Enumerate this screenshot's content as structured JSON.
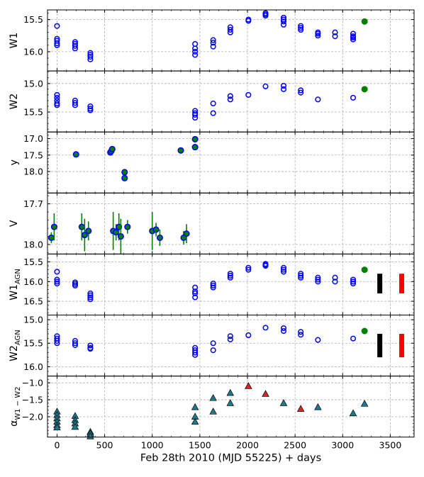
{
  "chart_data": {
    "type": "scatter",
    "xlabel": "Feb 28th 2010 (MJD 55225) + days",
    "xlim": [
      -100,
      3750
    ],
    "xticks": [
      0,
      500,
      1000,
      1500,
      2000,
      2500,
      3000,
      3500
    ],
    "grid": true,
    "panels": [
      {
        "ylabel": "W1",
        "ylabel_sub": "",
        "ylim": [
          16.3,
          15.35
        ],
        "yticks": [
          15.5,
          16.0
        ],
        "series": [
          {
            "marker": "open-circle",
            "color": "#0000ff",
            "x": [
              0,
              0,
              0,
              0,
              0,
              190,
              190,
              190,
              190,
              350,
              350,
              350,
              350,
              1450,
              1450,
              1450,
              1450,
              1640,
              1640,
              1640,
              1820,
              1820,
              1820,
              2010,
              2010,
              2190,
              2190,
              2190,
              2380,
              2380,
              2380,
              2380,
              2560,
              2560,
              2560,
              2740,
              2740,
              2740,
              2920,
              2920,
              3110,
              3110,
              3110,
              3110
            ],
            "y": [
              15.6,
              15.8,
              15.83,
              15.87,
              15.9,
              15.85,
              15.88,
              15.91,
              15.95,
              16.02,
              16.05,
              16.08,
              16.12,
              15.88,
              15.95,
              16.0,
              16.05,
              15.82,
              15.86,
              15.92,
              15.62,
              15.66,
              15.7,
              15.5,
              15.52,
              15.4,
              15.42,
              15.44,
              15.47,
              15.5,
              15.53,
              15.58,
              15.6,
              15.63,
              15.66,
              15.7,
              15.72,
              15.75,
              15.7,
              15.76,
              15.72,
              15.76,
              15.78,
              15.81
            ]
          },
          {
            "marker": "filled-circle",
            "color": "#008000",
            "x": [
              3230
            ],
            "y": [
              15.53
            ]
          }
        ]
      },
      {
        "ylabel": "W2",
        "ylabel_sub": "",
        "ylim": [
          15.85,
          14.78
        ],
        "yticks": [
          15.0,
          15.5
        ],
        "series": [
          {
            "marker": "open-circle",
            "color": "#0000ff",
            "x": [
              0,
              0,
              0,
              0,
              0,
              190,
              190,
              190,
              350,
              350,
              350,
              1450,
              1450,
              1450,
              1450,
              1640,
              1640,
              1820,
              1820,
              2010,
              2190,
              2380,
              2380,
              2560,
              2560,
              2740,
              3110
            ],
            "y": [
              15.2,
              15.25,
              15.3,
              15.35,
              15.38,
              15.3,
              15.34,
              15.38,
              15.4,
              15.44,
              15.47,
              15.48,
              15.52,
              15.55,
              15.6,
              15.35,
              15.52,
              15.22,
              15.28,
              15.2,
              15.05,
              15.04,
              15.1,
              15.12,
              15.16,
              15.28,
              15.25
            ]
          },
          {
            "marker": "filled-circle",
            "color": "#008000",
            "x": [
              3230
            ],
            "y": [
              15.1
            ]
          }
        ]
      },
      {
        "ylabel": "y",
        "ylabel_sub": "",
        "ylim": [
          18.65,
          16.8
        ],
        "yticks": [
          17.0,
          17.5,
          18.0
        ],
        "series": [
          {
            "marker": "filled-circle-blue-edge",
            "color": "#008000",
            "x": [
              200,
              560,
              570,
              580,
              710,
              710,
              1300,
              1450,
              1450
            ],
            "y": [
              17.48,
              17.42,
              17.38,
              17.32,
              18.02,
              18.2,
              17.36,
              17.02,
              17.26
            ]
          }
        ]
      },
      {
        "ylabel": "V",
        "ylabel_sub": "",
        "ylim": [
          18.07,
          17.62
        ],
        "yticks": [
          17.7,
          18.0
        ],
        "series": [
          {
            "marker": "filled-circle-blue-edge",
            "color": "#008000",
            "errorbar_color": "#008000",
            "x": [
              -60,
              -30,
              260,
              290,
              330,
              590,
              620,
              650,
              670,
              740,
              1000,
              1040,
              1080,
              1330,
              1360
            ],
            "y": [
              17.95,
              17.87,
              17.87,
              17.93,
              17.9,
              17.9,
              17.91,
              17.87,
              17.94,
              17.87,
              17.9,
              17.89,
              17.95,
              17.95,
              17.92
            ],
            "yerr": [
              0.04,
              0.1,
              0.1,
              0.12,
              0.07,
              0.14,
              0.06,
              0.1,
              0.13,
              0.05,
              0.14,
              0.05,
              0.06,
              0.05,
              0.07
            ]
          }
        ]
      },
      {
        "ylabel": "W1",
        "ylabel_sub": "AGN",
        "ylim": [
          16.85,
          15.3
        ],
        "yticks": [
          15.5,
          16.0,
          16.5
        ],
        "series": [
          {
            "marker": "open-circle",
            "color": "#0000ff",
            "x": [
              0,
              0,
              0,
              0,
              190,
              190,
              190,
              350,
              350,
              350,
              350,
              1450,
              1450,
              1450,
              1450,
              1640,
              1640,
              1640,
              1820,
              1820,
              1820,
              2010,
              2010,
              2190,
              2190,
              2190,
              2380,
              2380,
              2380,
              2560,
              2560,
              2560,
              2740,
              2740,
              2740,
              2920,
              2920,
              3110,
              3110,
              3110
            ],
            "y": [
              15.75,
              15.95,
              16.0,
              16.05,
              16.02,
              16.06,
              16.1,
              16.3,
              16.35,
              16.4,
              16.45,
              16.15,
              16.25,
              16.3,
              16.4,
              16.05,
              16.1,
              16.15,
              15.8,
              15.85,
              15.9,
              15.65,
              15.7,
              15.55,
              15.58,
              15.6,
              15.65,
              15.7,
              15.75,
              15.8,
              15.85,
              15.9,
              15.9,
              15.95,
              16.0,
              15.9,
              16.0,
              15.95,
              16.0,
              16.05
            ]
          },
          {
            "marker": "filled-circle",
            "color": "#008000",
            "x": [
              3230
            ],
            "y": [
              15.7
            ]
          },
          {
            "marker": "errorbar-only",
            "color": "#000000",
            "x": [
              3390
            ],
            "y": [
              16.05
            ],
            "yerr": [
              0.25
            ]
          },
          {
            "marker": "errorbar-only",
            "color": "#ff0000",
            "x": [
              3620
            ],
            "y": [
              16.05
            ],
            "yerr": [
              0.25
            ]
          }
        ]
      },
      {
        "ylabel": "W2",
        "ylabel_sub": "AGN",
        "ylim": [
          16.2,
          14.9
        ],
        "yticks": [
          15.0,
          15.5,
          16.0
        ],
        "series": [
          {
            "marker": "open-circle",
            "color": "#0000ff",
            "x": [
              0,
              0,
              0,
              0,
              190,
              190,
              190,
              350,
              350,
              350,
              1450,
              1450,
              1450,
              1450,
              1640,
              1640,
              1820,
              1820,
              2010,
              2190,
              2380,
              2380,
              2560,
              2560,
              2740,
              3110
            ],
            "y": [
              15.35,
              15.4,
              15.45,
              15.5,
              15.45,
              15.5,
              15.54,
              15.55,
              15.6,
              15.62,
              15.6,
              15.65,
              15.7,
              15.75,
              15.5,
              15.65,
              15.35,
              15.42,
              15.33,
              15.17,
              15.18,
              15.24,
              15.26,
              15.32,
              15.43,
              15.4
            ]
          },
          {
            "marker": "filled-circle",
            "color": "#008000",
            "x": [
              3230
            ],
            "y": [
              15.24
            ]
          },
          {
            "marker": "errorbar-only",
            "color": "#000000",
            "x": [
              3390
            ],
            "y": [
              15.55
            ],
            "yerr": [
              0.25
            ]
          },
          {
            "marker": "errorbar-only",
            "color": "#ff0000",
            "x": [
              3620
            ],
            "y": [
              15.55
            ],
            "yerr": [
              0.25
            ]
          }
        ]
      },
      {
        "ylabel": "α",
        "ylabel_sub": "W1 − W2",
        "ylim": [
          -2.6,
          -0.8
        ],
        "yticks": [
          -1.0,
          -1.5,
          -2.0
        ],
        "series": [
          {
            "marker": "triangle",
            "color": "#1f7a8c",
            "x": [
              0,
              0,
              0,
              0,
              0,
              0,
              190,
              190,
              190,
              190,
              350,
              350,
              350,
              1450,
              1450,
              1450,
              1640,
              1640,
              1820,
              1820,
              2380,
              2740,
              3110,
              3230
            ],
            "y": [
              -1.85,
              -1.95,
              -2.05,
              -2.15,
              -2.25,
              -2.32,
              -1.98,
              -2.1,
              -2.2,
              -2.3,
              -2.45,
              -2.5,
              -2.58,
              -1.72,
              -2.0,
              -2.15,
              -1.45,
              -1.85,
              -1.3,
              -1.6,
              -1.6,
              -1.72,
              -1.9,
              -1.62
            ]
          },
          {
            "marker": "triangle",
            "color": "#d62728",
            "x": [
              2010,
              2190,
              2560
            ],
            "y": [
              -1.1,
              -1.33,
              -1.77
            ]
          }
        ]
      }
    ]
  }
}
